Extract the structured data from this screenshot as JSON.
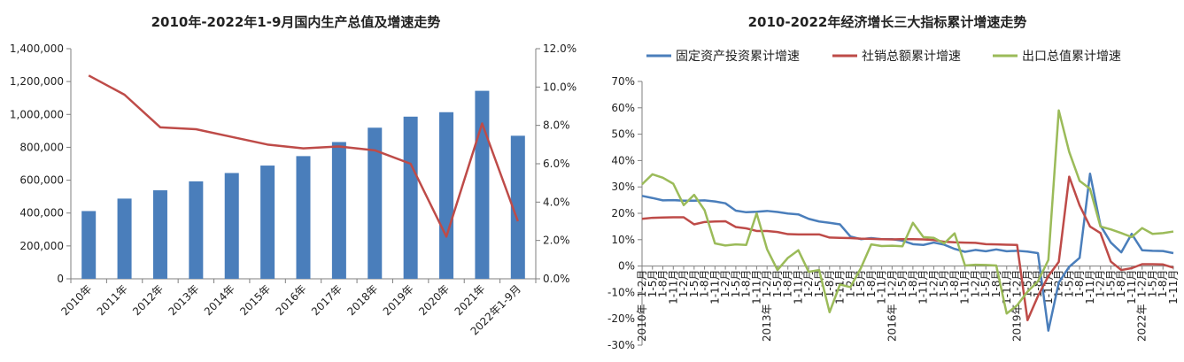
{
  "chart_data": [
    {
      "type": "bar",
      "title": "2010年-2022年1-9月国内生产总值及增速走势",
      "categories": [
        "2010年",
        "2011年",
        "2012年",
        "2013年",
        "2014年",
        "2015年",
        "2016年",
        "2017年",
        "2018年",
        "2019年",
        "2020年",
        "2021年",
        "2022年1-9月"
      ],
      "series": [
        {
          "values": [
            412119,
            487940,
            538580,
            592963,
            643563,
            688858,
            746395,
            832036,
            919281,
            986515,
            1013567,
            1143670,
            870269
          ],
          "color": "#4a7ebb",
          "axis": "left"
        },
        {
          "type": "line",
          "values": [
            10.6,
            9.6,
            7.9,
            7.8,
            7.4,
            7.0,
            6.8,
            6.9,
            6.7,
            6.0,
            2.2,
            8.1,
            3.0
          ],
          "color": "#be4b48",
          "axis": "right"
        }
      ],
      "ylim": [
        0,
        1400000
      ],
      "y_ticks": [
        "0",
        "200,000",
        "400,000",
        "600,000",
        "800,000",
        "1,000,000",
        "1,200,000",
        "1,400,000"
      ],
      "y2lim": [
        0,
        12
      ],
      "y2_ticks": [
        "0.0%",
        "2.0%",
        "4.0%",
        "6.0%",
        "8.0%",
        "10.0%",
        "12.0%"
      ],
      "grid": false
    },
    {
      "type": "line",
      "title": "2010-2022年经济增长三大指标累计增速走势",
      "legend_position": "top",
      "ylim": [
        -30,
        70
      ],
      "y_ticks": [
        "-30%",
        "-20%",
        "-10%",
        "0%",
        "10%",
        "20%",
        "30%",
        "40%",
        "50%",
        "60%",
        "70%"
      ],
      "x_label_pattern": [
        "1-2月",
        "1-5月",
        "1-8月",
        "1-11月"
      ],
      "x_year_marks": [
        {
          "label": "2010年",
          "index": 0
        },
        {
          "label": "2013年",
          "index": 12
        },
        {
          "label": "2016年",
          "index": 24
        },
        {
          "label": "2019年",
          "index": 36
        },
        {
          "label": "2022年",
          "index": 48
        }
      ],
      "x_count": 52,
      "series": [
        {
          "name": "固定资产投资累计增速",
          "color": "#4a7ebb",
          "values": [
            26.6,
            25.8,
            24.9,
            25.0,
            24.8,
            24.8,
            24.9,
            24.5,
            23.8,
            21.0,
            20.4,
            20.6,
            20.9,
            20.5,
            19.9,
            19.6,
            17.9,
            16.9,
            16.4,
            15.8,
            11.2,
            10.2,
            10.6,
            10.2,
            10.2,
            9.6,
            8.3,
            8.0,
            8.9,
            8.1,
            6.5,
            5.4,
            6.1,
            5.6,
            6.3,
            5.6,
            5.8,
            5.5,
            4.9,
            -24.5,
            -6.3,
            -0.3,
            3.1,
            35.0,
            15.4,
            8.9,
            5.2,
            12.2,
            6.0,
            5.8,
            5.7,
            4.9
          ]
        },
        {
          "name": "社销总额累计增速",
          "color": "#be4b48",
          "values": [
            17.9,
            18.3,
            18.4,
            18.5,
            18.5,
            15.8,
            16.7,
            16.9,
            17.0,
            14.8,
            14.3,
            13.3,
            13.3,
            12.9,
            12.1,
            12.0,
            12.0,
            12.0,
            10.8,
            10.7,
            10.6,
            10.4,
            10.3,
            10.2,
            10.1,
            10.2,
            10.2,
            10.1,
            9.9,
            9.2,
            9.0,
            8.9,
            8.8,
            8.3,
            8.2,
            8.1,
            8.0,
            -20.5,
            -11.4,
            -3.8,
            1.6,
            33.9,
            23.0,
            15.0,
            12.5,
            1.7,
            -1.5,
            -0.8,
            0.7,
            0.7,
            0.6,
            -0.6
          ]
        },
        {
          "name": "出口总值累计增速",
          "color": "#9bbb59",
          "values": [
            31.0,
            34.8,
            33.5,
            31.2,
            23.1,
            27.0,
            21.2,
            8.6,
            7.8,
            8.2,
            8.0,
            20.0,
            6.4,
            -1.5,
            3.1,
            6.0,
            -2.2,
            -1.5,
            -17.5,
            -7.0,
            -8.0,
            -0.8,
            8.2,
            7.6,
            7.7,
            7.5,
            16.4,
            11.0,
            10.7,
            8.6,
            12.4,
            0.2,
            0.5,
            0.4,
            0.2,
            -18.0,
            -14.9,
            -9.7,
            -5.8,
            2.3,
            59.0,
            43.3,
            32.3,
            29.3,
            15.0,
            13.9,
            12.5,
            11.0,
            14.4,
            12.2,
            12.5,
            13.1
          ]
        }
      ],
      "grid": false
    }
  ],
  "colors": {
    "bar": "#4a7ebb",
    "red": "#be4b48",
    "green": "#9bbb59",
    "axis": "#7f7f7f"
  }
}
